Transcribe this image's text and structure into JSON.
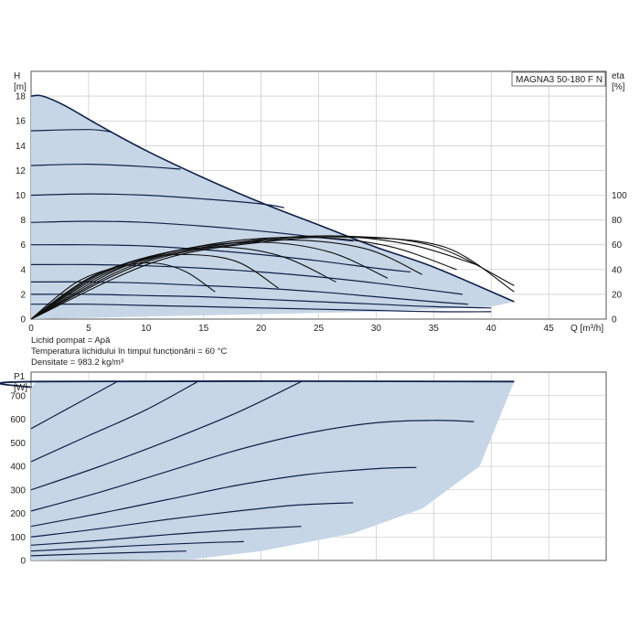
{
  "chart_data": [
    {
      "type": "line",
      "model_label": "MAGNA3 50-180 F N",
      "ylabel": "H",
      "ylabel_unit": "[m]",
      "y2label": "eta",
      "y2label_unit": "[%]",
      "xlabel": "Q [m³/h]",
      "xlim": [
        0,
        50
      ],
      "ylim": [
        0,
        20
      ],
      "x_ticks": [
        "0",
        "5",
        "10",
        "15",
        "20",
        "25",
        "30",
        "35",
        "40",
        "45"
      ],
      "y_ticks": [
        "0",
        "2",
        "4",
        "6",
        "8",
        "10",
        "12",
        "14",
        "16",
        "18"
      ],
      "y2_ticks": [
        "0",
        "20",
        "40",
        "60",
        "80",
        "100"
      ],
      "y2lim": [
        0,
        100
      ],
      "grid": true,
      "envelope": {
        "max_curve": [
          [
            0,
            18
          ],
          [
            1,
            18
          ],
          [
            3,
            17.2
          ],
          [
            6,
            15.6
          ],
          [
            10,
            13.6
          ],
          [
            15,
            11.4
          ],
          [
            20,
            9.4
          ],
          [
            25,
            7.6
          ],
          [
            30,
            5.8
          ],
          [
            35,
            4.2
          ],
          [
            42,
            1.4
          ]
        ],
        "min_curve": [
          [
            0,
            0
          ],
          [
            10,
            0.2
          ],
          [
            20,
            0.4
          ],
          [
            30,
            0.6
          ],
          [
            35,
            0.8
          ],
          [
            40,
            1.0
          ],
          [
            42,
            1.4
          ]
        ]
      },
      "series": [
        {
          "points": [
            [
              0,
              15.2
            ],
            [
              5,
              15.3
            ],
            [
              7,
              15.1
            ]
          ]
        },
        {
          "points": [
            [
              0,
              12.4
            ],
            [
              5,
              12.5
            ],
            [
              10,
              12.3
            ],
            [
              13,
              12.1
            ]
          ]
        },
        {
          "points": [
            [
              0,
              10
            ],
            [
              5,
              10.1
            ],
            [
              10,
              10
            ],
            [
              15,
              9.7
            ],
            [
              20,
              9.3
            ],
            [
              22,
              9.0
            ]
          ]
        },
        {
          "points": [
            [
              0,
              7.8
            ],
            [
              5,
              7.9
            ],
            [
              10,
              7.8
            ],
            [
              15,
              7.5
            ],
            [
              20,
              7.1
            ],
            [
              25,
              6.6
            ],
            [
              28,
              6.3
            ]
          ]
        },
        {
          "points": [
            [
              0,
              6
            ],
            [
              5,
              6.0
            ],
            [
              10,
              5.9
            ],
            [
              15,
              5.6
            ],
            [
              20,
              5.2
            ],
            [
              25,
              4.7
            ],
            [
              30,
              4.1
            ],
            [
              33,
              3.8
            ]
          ]
        },
        {
          "points": [
            [
              0,
              4.4
            ],
            [
              5,
              4.4
            ],
            [
              10,
              4.3
            ],
            [
              15,
              4.1
            ],
            [
              20,
              3.8
            ],
            [
              25,
              3.4
            ],
            [
              30,
              2.9
            ],
            [
              35,
              2.3
            ],
            [
              37.5,
              2.0
            ]
          ]
        },
        {
          "points": [
            [
              0,
              3.0
            ],
            [
              5,
              3.0
            ],
            [
              10,
              2.9
            ],
            [
              15,
              2.7
            ],
            [
              20,
              2.5
            ],
            [
              25,
              2.2
            ],
            [
              30,
              1.8
            ],
            [
              35,
              1.4
            ],
            [
              38,
              1.2
            ]
          ]
        },
        {
          "points": [
            [
              0,
              2.0
            ],
            [
              5,
              2.0
            ],
            [
              10,
              1.9
            ],
            [
              15,
              1.8
            ],
            [
              20,
              1.6
            ],
            [
              25,
              1.4
            ],
            [
              30,
              1.2
            ],
            [
              35,
              1.0
            ],
            [
              40,
              0.9
            ]
          ]
        },
        {
          "points": [
            [
              0,
              1.2
            ],
            [
              5,
              1.2
            ],
            [
              10,
              1.1
            ],
            [
              15,
              1.0
            ],
            [
              20,
              0.9
            ],
            [
              25,
              0.8
            ],
            [
              30,
              0.7
            ],
            [
              35,
              0.6
            ],
            [
              40,
              0.6
            ]
          ]
        }
      ],
      "efficiency_series": [
        {
          "points": [
            [
              0,
              0
            ],
            [
              4,
              30
            ],
            [
              8,
              43
            ],
            [
              11,
              45
            ],
            [
              13.5,
              38
            ],
            [
              16,
              22
            ]
          ]
        },
        {
          "points": [
            [
              0,
              0
            ],
            [
              5,
              33
            ],
            [
              10,
              49
            ],
            [
              14,
              52
            ],
            [
              18,
              46
            ],
            [
              21.5,
              25
            ]
          ]
        },
        {
          "points": [
            [
              0,
              0
            ],
            [
              6,
              36
            ],
            [
              12,
              54
            ],
            [
              17,
              58
            ],
            [
              22,
              50
            ],
            [
              26.5,
              30
            ]
          ]
        },
        {
          "points": [
            [
              0,
              0
            ],
            [
              6,
              37
            ],
            [
              13,
              56
            ],
            [
              20,
              62
            ],
            [
              26,
              54
            ],
            [
              31,
              33
            ]
          ]
        },
        {
          "points": [
            [
              0,
              0
            ],
            [
              7,
              39
            ],
            [
              15,
              58
            ],
            [
              22,
              64
            ],
            [
              29,
              57
            ],
            [
              34,
              36
            ]
          ]
        },
        {
          "points": [
            [
              0,
              0
            ],
            [
              8,
              42
            ],
            [
              16,
              61
            ],
            [
              24,
              66
            ],
            [
              31,
              59
            ],
            [
              37,
              40
            ]
          ]
        },
        {
          "points": [
            [
              0,
              0
            ],
            [
              9,
              44
            ],
            [
              18,
              62
            ],
            [
              26,
              67
            ],
            [
              33,
              60
            ],
            [
              39,
              43
            ]
          ]
        },
        {
          "points": [
            [
              0,
              0
            ],
            [
              10,
              46
            ],
            [
              20,
              63
            ],
            [
              27,
              67
            ],
            [
              35,
              59
            ],
            [
              42,
              27
            ]
          ]
        },
        {
          "points": [
            [
              0,
              0
            ],
            [
              11,
              47
            ],
            [
              21,
              63
            ],
            [
              28,
              66
            ],
            [
              36,
              58
            ],
            [
              42,
              22
            ]
          ]
        }
      ]
    },
    {
      "type": "line",
      "ylabel": "P1",
      "ylabel_unit": "[W]",
      "xlim": [
        0,
        50
      ],
      "ylim": [
        0,
        800
      ],
      "y_ticks": [
        "0",
        "100",
        "200",
        "300",
        "400",
        "500",
        "600",
        "700"
      ],
      "grid": true,
      "envelope": {
        "max_curve": [
          [
            0,
            735
          ],
          [
            0.5,
            760
          ],
          [
            42,
            760
          ]
        ],
        "min_curve": [
          [
            0,
            0
          ],
          [
            14,
            5
          ],
          [
            20,
            40
          ],
          [
            28,
            115
          ],
          [
            34,
            220
          ],
          [
            39,
            400
          ],
          [
            42,
            760
          ]
        ]
      },
      "series": [
        {
          "points": [
            [
              0,
              735
            ],
            [
              0.5,
              760
            ],
            [
              42,
              760
            ]
          ]
        },
        {
          "points": [
            [
              0,
              560
            ],
            [
              3,
              640
            ],
            [
              6,
              720
            ],
            [
              7.5,
              760
            ]
          ]
        },
        {
          "points": [
            [
              0,
              420
            ],
            [
              5,
              530
            ],
            [
              10,
              640
            ],
            [
              14.5,
              760
            ]
          ]
        },
        {
          "points": [
            [
              0,
              300
            ],
            [
              6,
              400
            ],
            [
              12,
              510
            ],
            [
              18,
              630
            ],
            [
              23.5,
              760
            ]
          ]
        },
        {
          "points": [
            [
              0,
              210
            ],
            [
              6,
              290
            ],
            [
              12,
              380
            ],
            [
              18,
              470
            ],
            [
              24,
              540
            ],
            [
              30,
              585
            ],
            [
              35,
              595
            ],
            [
              38.5,
              590
            ]
          ]
        },
        {
          "points": [
            [
              0,
              145
            ],
            [
              6,
              200
            ],
            [
              12,
              260
            ],
            [
              18,
              320
            ],
            [
              24,
              365
            ],
            [
              30,
              390
            ],
            [
              33.5,
              395
            ]
          ]
        },
        {
          "points": [
            [
              0,
              100
            ],
            [
              6,
              135
            ],
            [
              12,
              175
            ],
            [
              18,
              210
            ],
            [
              23,
              235
            ],
            [
              28,
              245
            ]
          ]
        },
        {
          "points": [
            [
              0,
              65
            ],
            [
              6,
              85
            ],
            [
              12,
              110
            ],
            [
              18,
              130
            ],
            [
              23.5,
              145
            ]
          ]
        },
        {
          "points": [
            [
              0,
              40
            ],
            [
              5,
              52
            ],
            [
              10,
              65
            ],
            [
              15,
              75
            ],
            [
              18.5,
              80
            ]
          ]
        },
        {
          "points": [
            [
              0,
              20
            ],
            [
              5,
              28
            ],
            [
              10,
              35
            ],
            [
              13.5,
              40
            ]
          ]
        }
      ]
    }
  ],
  "notes": {
    "liquid": "Lichid pompat = Apă",
    "temperature": "Temperatura lichidului în timpul funcționării = 60 °C",
    "density": "Densitate = 983.2 kg/m³"
  },
  "colors": {
    "curve": "#10204a",
    "fill": "#c6d6e6",
    "grid": "#bfbfbf",
    "frame": "#555555"
  }
}
